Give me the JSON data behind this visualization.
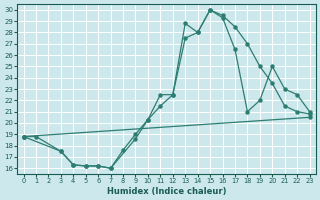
{
  "xlabel": "Humidex (Indice chaleur)",
  "ylabel": "",
  "bg_color": "#cce8ec",
  "grid_color": "#ffffff",
  "line_color": "#2e7d72",
  "xlim": [
    -0.5,
    23.5
  ],
  "ylim": [
    15.5,
    30.5
  ],
  "xticks": [
    0,
    1,
    2,
    3,
    4,
    5,
    6,
    7,
    8,
    9,
    10,
    11,
    12,
    13,
    14,
    15,
    16,
    17,
    18,
    19,
    20,
    21,
    22,
    23
  ],
  "yticks": [
    16,
    17,
    18,
    19,
    20,
    21,
    22,
    23,
    24,
    25,
    26,
    27,
    28,
    29,
    30
  ],
  "series1_x": [
    0,
    1,
    3,
    4,
    5,
    6,
    7,
    9,
    10,
    11,
    12,
    13,
    14,
    15,
    16,
    17,
    18,
    19,
    20,
    21,
    22,
    23
  ],
  "series1_y": [
    18.8,
    18.8,
    17.5,
    16.3,
    16.2,
    16.2,
    16.0,
    18.6,
    20.3,
    22.5,
    22.5,
    28.8,
    28.0,
    30.0,
    29.5,
    28.5,
    27.0,
    25.0,
    23.5,
    21.5,
    21.0,
    20.8
  ],
  "series2_x": [
    0,
    3,
    4,
    5,
    6,
    7,
    8,
    9,
    10,
    11,
    12,
    13,
    14,
    15,
    16,
    17,
    18,
    19,
    20,
    21,
    22,
    23
  ],
  "series2_y": [
    18.8,
    17.5,
    16.3,
    16.2,
    16.2,
    16.0,
    17.6,
    19.0,
    20.3,
    21.5,
    22.5,
    27.5,
    28.0,
    30.0,
    29.3,
    26.5,
    21.0,
    22.0,
    25.0,
    23.0,
    22.5,
    21.0
  ],
  "series3_x": [
    0,
    23
  ],
  "series3_y": [
    18.8,
    20.5
  ]
}
